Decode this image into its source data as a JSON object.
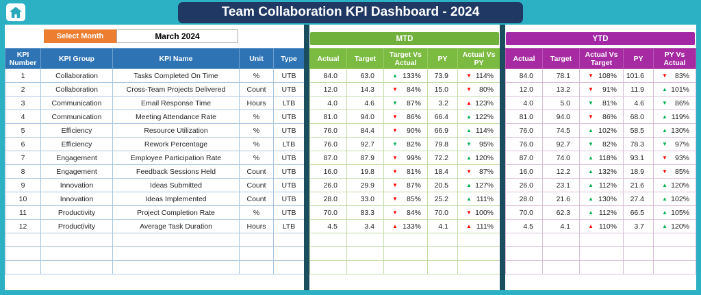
{
  "header": {
    "title": "Team Collaboration KPI Dashboard - 2024"
  },
  "controls": {
    "select_month_label": "Select Month",
    "selected_month": "March 2024"
  },
  "kpi_table": {
    "headers": [
      "KPI Number",
      "KPI Group",
      "KPI Name",
      "Unit",
      "Type"
    ]
  },
  "mtd": {
    "title": "MTD",
    "headers": [
      "Actual",
      "Target",
      "Target Vs Actual",
      "PY",
      "Actual Vs PY"
    ]
  },
  "ytd": {
    "title": "YTD",
    "headers": [
      "Actual",
      "Target",
      "Actual Vs Target",
      "PY",
      "PY Vs Actual"
    ]
  },
  "icons": {
    "home": "home-icon",
    "trend_up": "▲",
    "trend_down": "▼"
  },
  "colors": {
    "page_teal": "#2CB0C3",
    "title_navy": "#1F3864",
    "button_orange": "#ED7D31",
    "kpi_header_blue": "#2E74B5",
    "mtd_green": "#7CBB41",
    "ytd_purple": "#A62BA2",
    "trend_green": "#00B050",
    "trend_red": "#FF0000"
  },
  "empty_row_count": 3,
  "rows": [
    {
      "num": "1",
      "group": "Collaboration",
      "name": "Tasks Completed On Time",
      "unit": "%",
      "type": "UTB",
      "mtd": {
        "actual": "84.0",
        "target": "63.0",
        "tva": {
          "dir": "up",
          "color": "green",
          "value": "133%"
        },
        "py": "73.9",
        "avp": {
          "dir": "down",
          "color": "red",
          "value": "114%"
        }
      },
      "ytd": {
        "actual": "84.0",
        "target": "78.1",
        "avt": {
          "dir": "down",
          "color": "red",
          "value": "108%"
        },
        "py": "101.6",
        "pva": {
          "dir": "down",
          "color": "red",
          "value": "83%"
        }
      }
    },
    {
      "num": "2",
      "group": "Collaboration",
      "name": "Cross-Team Projects Delivered",
      "unit": "Count",
      "type": "UTB",
      "mtd": {
        "actual": "12.0",
        "target": "14.3",
        "tva": {
          "dir": "down",
          "color": "red",
          "value": "84%"
        },
        "py": "15.0",
        "avp": {
          "dir": "down",
          "color": "red",
          "value": "80%"
        }
      },
      "ytd": {
        "actual": "12.0",
        "target": "13.2",
        "avt": {
          "dir": "down",
          "color": "red",
          "value": "91%"
        },
        "py": "11.9",
        "pva": {
          "dir": "up",
          "color": "green",
          "value": "101%"
        }
      }
    },
    {
      "num": "3",
      "group": "Communication",
      "name": "Email Response Time",
      "unit": "Hours",
      "type": "LTB",
      "mtd": {
        "actual": "4.0",
        "target": "4.6",
        "tva": {
          "dir": "down",
          "color": "green",
          "value": "87%"
        },
        "py": "3.2",
        "avp": {
          "dir": "up",
          "color": "red",
          "value": "123%"
        }
      },
      "ytd": {
        "actual": "4.0",
        "target": "5.0",
        "avt": {
          "dir": "down",
          "color": "green",
          "value": "81%"
        },
        "py": "4.6",
        "pva": {
          "dir": "down",
          "color": "green",
          "value": "86%"
        }
      }
    },
    {
      "num": "4",
      "group": "Communication",
      "name": "Meeting Attendance Rate",
      "unit": "%",
      "type": "UTB",
      "mtd": {
        "actual": "81.0",
        "target": "94.0",
        "tva": {
          "dir": "down",
          "color": "red",
          "value": "86%"
        },
        "py": "66.4",
        "avp": {
          "dir": "up",
          "color": "green",
          "value": "122%"
        }
      },
      "ytd": {
        "actual": "81.0",
        "target": "94.0",
        "avt": {
          "dir": "down",
          "color": "red",
          "value": "86%"
        },
        "py": "68.0",
        "pva": {
          "dir": "up",
          "color": "green",
          "value": "119%"
        }
      }
    },
    {
      "num": "5",
      "group": "Efficiency",
      "name": "Resource Utilization",
      "unit": "%",
      "type": "UTB",
      "mtd": {
        "actual": "76.0",
        "target": "84.4",
        "tva": {
          "dir": "down",
          "color": "red",
          "value": "90%"
        },
        "py": "66.9",
        "avp": {
          "dir": "up",
          "color": "green",
          "value": "114%"
        }
      },
      "ytd": {
        "actual": "76.0",
        "target": "74.5",
        "avt": {
          "dir": "up",
          "color": "green",
          "value": "102%"
        },
        "py": "58.5",
        "pva": {
          "dir": "up",
          "color": "green",
          "value": "130%"
        }
      }
    },
    {
      "num": "6",
      "group": "Efficiency",
      "name": "Rework Percentage",
      "unit": "%",
      "type": "LTB",
      "mtd": {
        "actual": "76.0",
        "target": "92.7",
        "tva": {
          "dir": "down",
          "color": "green",
          "value": "82%"
        },
        "py": "79.8",
        "avp": {
          "dir": "down",
          "color": "green",
          "value": "95%"
        }
      },
      "ytd": {
        "actual": "76.0",
        "target": "92.7",
        "avt": {
          "dir": "down",
          "color": "green",
          "value": "82%"
        },
        "py": "78.3",
        "pva": {
          "dir": "down",
          "color": "green",
          "value": "97%"
        }
      }
    },
    {
      "num": "7",
      "group": "Engagement",
      "name": "Employee Participation Rate",
      "unit": "%",
      "type": "UTB",
      "mtd": {
        "actual": "87.0",
        "target": "87.9",
        "tva": {
          "dir": "down",
          "color": "red",
          "value": "99%"
        },
        "py": "72.2",
        "avp": {
          "dir": "up",
          "color": "green",
          "value": "120%"
        }
      },
      "ytd": {
        "actual": "87.0",
        "target": "74.0",
        "avt": {
          "dir": "up",
          "color": "green",
          "value": "118%"
        },
        "py": "93.1",
        "pva": {
          "dir": "down",
          "color": "red",
          "value": "93%"
        }
      }
    },
    {
      "num": "8",
      "group": "Engagement",
      "name": "Feedback Sessions Held",
      "unit": "Count",
      "type": "UTB",
      "mtd": {
        "actual": "16.0",
        "target": "19.8",
        "tva": {
          "dir": "down",
          "color": "red",
          "value": "81%"
        },
        "py": "18.4",
        "avp": {
          "dir": "down",
          "color": "red",
          "value": "87%"
        }
      },
      "ytd": {
        "actual": "16.0",
        "target": "12.2",
        "avt": {
          "dir": "up",
          "color": "green",
          "value": "132%"
        },
        "py": "18.9",
        "pva": {
          "dir": "down",
          "color": "red",
          "value": "85%"
        }
      }
    },
    {
      "num": "9",
      "group": "Innovation",
      "name": "Ideas Submitted",
      "unit": "Count",
      "type": "UTB",
      "mtd": {
        "actual": "26.0",
        "target": "29.9",
        "tva": {
          "dir": "down",
          "color": "red",
          "value": "87%"
        },
        "py": "20.5",
        "avp": {
          "dir": "up",
          "color": "green",
          "value": "127%"
        }
      },
      "ytd": {
        "actual": "26.0",
        "target": "23.1",
        "avt": {
          "dir": "up",
          "color": "green",
          "value": "112%"
        },
        "py": "21.6",
        "pva": {
          "dir": "up",
          "color": "green",
          "value": "120%"
        }
      }
    },
    {
      "num": "10",
      "group": "Innovation",
      "name": "Ideas Implemented",
      "unit": "Count",
      "type": "UTB",
      "mtd": {
        "actual": "28.0",
        "target": "33.0",
        "tva": {
          "dir": "down",
          "color": "red",
          "value": "85%"
        },
        "py": "25.2",
        "avp": {
          "dir": "up",
          "color": "green",
          "value": "111%"
        }
      },
      "ytd": {
        "actual": "28.0",
        "target": "21.6",
        "avt": {
          "dir": "up",
          "color": "green",
          "value": "130%"
        },
        "py": "27.4",
        "pva": {
          "dir": "up",
          "color": "green",
          "value": "102%"
        }
      }
    },
    {
      "num": "11",
      "group": "Productivity",
      "name": "Project Completion Rate",
      "unit": "%",
      "type": "UTB",
      "mtd": {
        "actual": "70.0",
        "target": "83.3",
        "tva": {
          "dir": "down",
          "color": "red",
          "value": "84%"
        },
        "py": "70.0",
        "avp": {
          "dir": "down",
          "color": "red",
          "value": "100%"
        }
      },
      "ytd": {
        "actual": "70.0",
        "target": "62.3",
        "avt": {
          "dir": "up",
          "color": "green",
          "value": "112%"
        },
        "py": "66.5",
        "pva": {
          "dir": "up",
          "color": "green",
          "value": "105%"
        }
      }
    },
    {
      "num": "12",
      "group": "Productivity",
      "name": "Average Task Duration",
      "unit": "Hours",
      "type": "LTB",
      "mtd": {
        "actual": "4.5",
        "target": "3.4",
        "tva": {
          "dir": "up",
          "color": "red",
          "value": "133%"
        },
        "py": "4.1",
        "avp": {
          "dir": "up",
          "color": "red",
          "value": "111%"
        }
      },
      "ytd": {
        "actual": "4.5",
        "target": "4.1",
        "avt": {
          "dir": "up",
          "color": "red",
          "value": "110%"
        },
        "py": "3.7",
        "pva": {
          "dir": "up",
          "color": "green",
          "value": "120%"
        }
      }
    }
  ]
}
